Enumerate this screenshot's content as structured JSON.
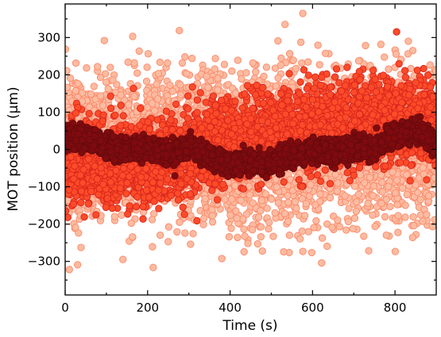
{
  "chart_data": {
    "type": "scatter",
    "xlabel": "Time (s)",
    "ylabel": "MOT position (μm)",
    "xlim": [
      0,
      900
    ],
    "ylim": [
      -390,
      390
    ],
    "x_ticks": [
      0,
      200,
      400,
      600,
      800
    ],
    "y_ticks": [
      -300,
      -200,
      -100,
      0,
      100,
      200,
      300
    ],
    "x_tick_labels": [
      "0",
      "200",
      "400",
      "600",
      "800"
    ],
    "y_tick_labels": [
      "−300",
      "−200",
      "−100",
      "0",
      "100",
      "200",
      "300"
    ],
    "grid": false,
    "legend": "none",
    "series": [
      {
        "fill": "#fcbba1",
        "stroke": "#fb8a6a",
        "spread": 95,
        "points_per_s": 5,
        "trend": [
          [
            0,
            10
          ],
          [
            100,
            0
          ],
          [
            200,
            5
          ],
          [
            300,
            5
          ],
          [
            400,
            -10
          ],
          [
            500,
            -10
          ],
          [
            600,
            10
          ],
          [
            700,
            15
          ],
          [
            800,
            20
          ],
          [
            900,
            10
          ]
        ]
      },
      {
        "fill": "#fb4b29",
        "stroke": "#d9261c",
        "spread": 55,
        "points_per_s": 4,
        "trend": [
          [
            0,
            -40
          ],
          [
            100,
            -40
          ],
          [
            200,
            -30
          ],
          [
            300,
            -10
          ],
          [
            400,
            20
          ],
          [
            500,
            40
          ],
          [
            600,
            60
          ],
          [
            700,
            80
          ],
          [
            800,
            80
          ],
          [
            900,
            70
          ]
        ]
      },
      {
        "fill": "#7f0b0f",
        "stroke": "#670a0d",
        "spread": 14,
        "points_per_s": 4,
        "trend": [
          [
            0,
            30
          ],
          [
            50,
            35
          ],
          [
            100,
            5
          ],
          [
            150,
            0
          ],
          [
            200,
            5
          ],
          [
            250,
            -10
          ],
          [
            300,
            10
          ],
          [
            350,
            -20
          ],
          [
            400,
            -40
          ],
          [
            450,
            -30
          ],
          [
            500,
            -40
          ],
          [
            550,
            -15
          ],
          [
            600,
            0
          ],
          [
            650,
            -10
          ],
          [
            700,
            5
          ],
          [
            750,
            0
          ],
          [
            800,
            40
          ],
          [
            850,
            50
          ],
          [
            900,
            10
          ]
        ]
      }
    ]
  }
}
